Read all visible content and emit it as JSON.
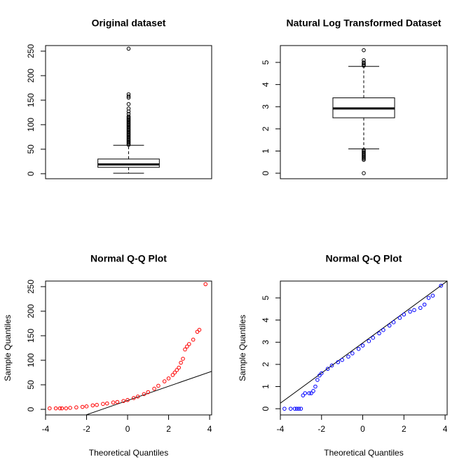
{
  "chart_data": [
    {
      "type": "box",
      "title": "Original dataset",
      "ylim": [
        -10.2,
        261.4
      ],
      "yticks": [
        0,
        50,
        100,
        150,
        200,
        250
      ],
      "whisker_low": 1,
      "q1": 13,
      "median": 19,
      "q3": 30,
      "whisker_high": 58,
      "outliers": [
        59,
        61,
        63,
        65,
        67,
        69,
        71,
        73,
        75,
        77,
        79,
        81,
        83,
        85,
        87,
        89,
        91,
        93,
        95,
        97,
        99,
        101,
        103,
        105,
        107,
        109,
        111,
        113,
        115,
        117,
        122,
        127,
        133,
        142,
        155,
        158,
        162,
        255
      ],
      "color": "#000000"
    },
    {
      "type": "box",
      "title": "Natural Log Transformed Dataset",
      "ylim": [
        -0.25,
        5.76
      ],
      "yticks": [
        0,
        1,
        2,
        3,
        4,
        5
      ],
      "whisker_low": 1.1,
      "q1": 2.5,
      "median": 2.92,
      "q3": 3.4,
      "whisker_high": 4.82,
      "outliers": [
        0,
        0.6,
        0.65,
        0.7,
        0.75,
        0.8,
        0.85,
        0.9,
        0.95,
        1.0,
        1.05,
        4.85,
        4.9,
        4.95,
        5.0,
        5.1,
        5.55
      ],
      "color": "#000000"
    },
    {
      "type": "qq",
      "title": "Normal Q-Q Plot",
      "x_label": "Theoretical Quantiles",
      "y_label": "Sample Quantiles",
      "xlim": [
        -4.0,
        4.1
      ],
      "xticks": [
        -4,
        -2,
        0,
        2,
        4
      ],
      "ylim": [
        -11.4,
        261.4
      ],
      "yticks": [
        0,
        50,
        100,
        150,
        200,
        250
      ],
      "x": [
        -3.8,
        -3.5,
        -3.3,
        -3.2,
        -3.0,
        -2.8,
        -2.5,
        -2.2,
        -2.0,
        -1.7,
        -1.5,
        -1.2,
        -1.0,
        -0.7,
        -0.5,
        -0.2,
        0,
        0.3,
        0.5,
        0.8,
        1.0,
        1.3,
        1.5,
        1.8,
        2.0,
        2.2,
        2.3,
        2.4,
        2.5,
        2.6,
        2.7,
        2.8,
        2.9,
        3.0,
        3.2,
        3.4,
        3.5,
        3.8
      ],
      "values": [
        2,
        2,
        2,
        2,
        2,
        3,
        4,
        5,
        6,
        8,
        9,
        11,
        12,
        14,
        15,
        17,
        19,
        23,
        26,
        31,
        35,
        42,
        48,
        57,
        63,
        70,
        75,
        80,
        85,
        95,
        103,
        122,
        128,
        133,
        142,
        158,
        162,
        255
      ],
      "ref_line": {
        "intercept": 18,
        "slope": 14.5
      },
      "color": "#ff0000"
    },
    {
      "type": "qq",
      "title": "Normal Q-Q Plot",
      "x_label": "Theoretical Quantiles",
      "y_label": "Sample Quantiles",
      "xlim": [
        -4.0,
        4.1
      ],
      "xticks": [
        -4,
        -2,
        0,
        2,
        4
      ],
      "ylim": [
        -0.28,
        5.76
      ],
      "yticks": [
        0,
        1,
        2,
        3,
        4,
        5
      ],
      "x": [
        -3.8,
        -3.5,
        -3.3,
        -3.2,
        -3.1,
        -3.0,
        -2.9,
        -2.8,
        -2.6,
        -2.5,
        -2.4,
        -2.3,
        -2.2,
        -2.1,
        -2.0,
        -1.7,
        -1.5,
        -1.2,
        -1.0,
        -0.7,
        -0.5,
        -0.2,
        0,
        0.3,
        0.5,
        0.8,
        1.0,
        1.3,
        1.5,
        1.8,
        2.0,
        2.3,
        2.5,
        2.8,
        3.0,
        3.2,
        3.4,
        3.8
      ],
      "values": [
        0,
        0,
        0,
        0,
        0,
        0,
        0.6,
        0.7,
        0.7,
        0.7,
        0.8,
        1.0,
        1.3,
        1.5,
        1.6,
        1.8,
        1.95,
        2.1,
        2.2,
        2.35,
        2.5,
        2.7,
        2.85,
        3.05,
        3.2,
        3.4,
        3.55,
        3.75,
        3.9,
        4.1,
        4.25,
        4.38,
        4.45,
        4.55,
        4.7,
        5.0,
        5.1,
        5.55
      ],
      "ref_line": {
        "intercept": 2.97,
        "slope": 0.68
      },
      "color": "#0000ff"
    }
  ]
}
